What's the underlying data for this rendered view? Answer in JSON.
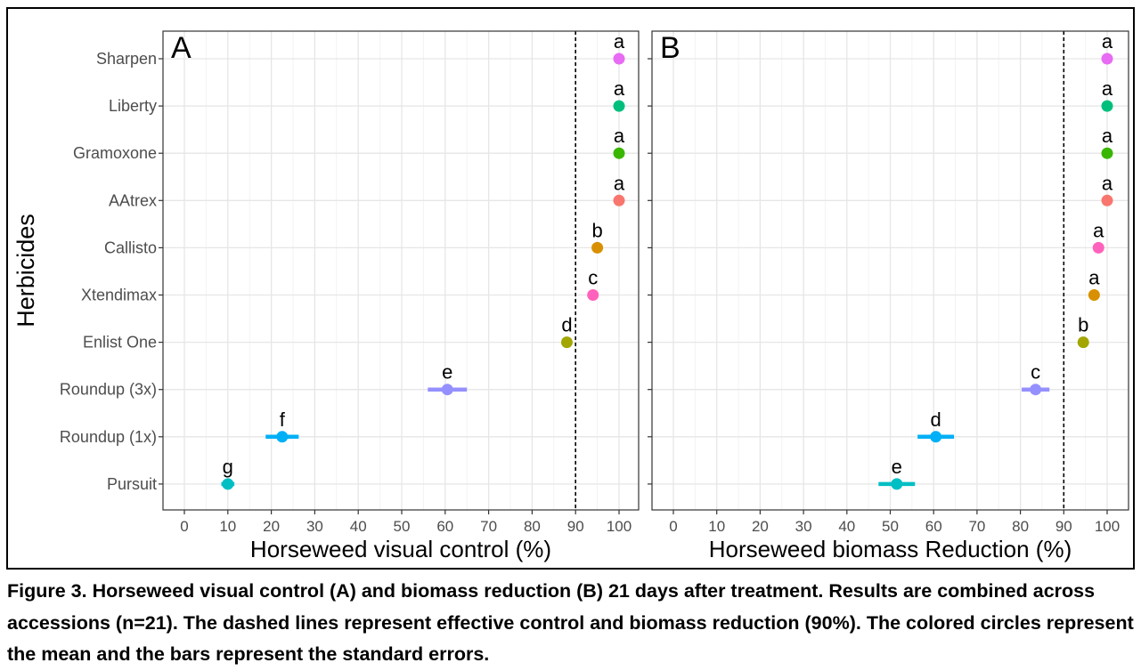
{
  "caption": "Figure 3. Horseweed visual control (A) and biomass reduction (B) 21 days after treatment. Results are combined across accessions (n=21). The dashed lines represent effective control and biomass reduction (90%). The colored circles represent the mean and the bars represent the standard errors.",
  "chart_data": [
    {
      "type": "scatter",
      "panel_label": "A",
      "xlabel": "Horseweed visual control (%)",
      "ylabel": "Herbicides",
      "xlim": [
        -5,
        105
      ],
      "xticks": [
        "0",
        "10",
        "20",
        "30",
        "40",
        "50",
        "60",
        "70",
        "80",
        "90",
        "100"
      ],
      "reference_line_x": 90,
      "grid": true,
      "categories": [
        "Sharpen",
        "Liberty",
        "Gramoxone",
        "AAtrex",
        "Callisto",
        "Xtendimax",
        "Enlist One",
        "Roundup (3x)",
        "Roundup (1x)",
        "Pursuit"
      ],
      "series": [
        {
          "points": [
            {
              "category": "Sharpen",
              "mean": 100,
              "se": 0,
              "letter": "a",
              "color": "#E76BF3"
            },
            {
              "category": "Liberty",
              "mean": 100,
              "se": 0,
              "letter": "a",
              "color": "#00BF7D"
            },
            {
              "category": "Gramoxone",
              "mean": 100,
              "se": 0,
              "letter": "a",
              "color": "#39B600"
            },
            {
              "category": "AAtrex",
              "mean": 100,
              "se": 0,
              "letter": "a",
              "color": "#F8766D"
            },
            {
              "category": "Callisto",
              "mean": 95,
              "se": 0.5,
              "letter": "b",
              "color": "#D89000"
            },
            {
              "category": "Xtendimax",
              "mean": 94,
              "se": 0.5,
              "letter": "c",
              "color": "#FF62BC"
            },
            {
              "category": "Enlist One",
              "mean": 88,
              "se": 0.8,
              "letter": "d",
              "color": "#A3A500"
            },
            {
              "category": "Roundup (3x)",
              "mean": 60.5,
              "se": 4.5,
              "letter": "e",
              "color": "#9590FF"
            },
            {
              "category": "Roundup (1x)",
              "mean": 22.5,
              "se": 3.8,
              "letter": "f",
              "color": "#00B0F6"
            },
            {
              "category": "Pursuit",
              "mean": 10,
              "se": 1.5,
              "letter": "g",
              "color": "#00BFC4"
            }
          ]
        }
      ]
    },
    {
      "type": "scatter",
      "panel_label": "B",
      "xlabel": "Horseweed biomass Reduction (%)",
      "ylabel": "",
      "xlim": [
        -5,
        105
      ],
      "xticks": [
        "0",
        "10",
        "20",
        "30",
        "40",
        "50",
        "60",
        "70",
        "80",
        "90",
        "100"
      ],
      "reference_line_x": 90,
      "grid": true,
      "categories": [
        "Sharpen",
        "Liberty",
        "Gramoxone",
        "AAtrex",
        "Callisto",
        "Xtendimax",
        "Enlist One",
        "Roundup (3x)",
        "Roundup (1x)",
        "Pursuit"
      ],
      "series": [
        {
          "points": [
            {
              "category": "Sharpen",
              "mean": 100,
              "se": 0,
              "letter": "a",
              "color": "#E76BF3"
            },
            {
              "category": "Liberty",
              "mean": 100,
              "se": 0,
              "letter": "a",
              "color": "#00BF7D"
            },
            {
              "category": "Gramoxone",
              "mean": 100,
              "se": 0,
              "letter": "a",
              "color": "#39B600"
            },
            {
              "category": "AAtrex",
              "mean": 100,
              "se": 0,
              "letter": "a",
              "color": "#F8766D"
            },
            {
              "category": "Callisto",
              "mean": 98,
              "se": 0.5,
              "letter": "a",
              "color": "#FF62BC"
            },
            {
              "category": "Xtendimax",
              "mean": 97,
              "se": 0.5,
              "letter": "a",
              "color": "#D89000"
            },
            {
              "category": "Enlist One",
              "mean": 94.5,
              "se": 0.8,
              "letter": "b",
              "color": "#A3A500"
            },
            {
              "category": "Roundup (3x)",
              "mean": 83.5,
              "se": 3.2,
              "letter": "c",
              "color": "#9590FF"
            },
            {
              "category": "Roundup (1x)",
              "mean": 60.5,
              "se": 4.2,
              "letter": "d",
              "color": "#00B0F6"
            },
            {
              "category": "Pursuit",
              "mean": 51.5,
              "se": 4.2,
              "letter": "e",
              "color": "#00BFC4"
            }
          ]
        }
      ]
    }
  ]
}
